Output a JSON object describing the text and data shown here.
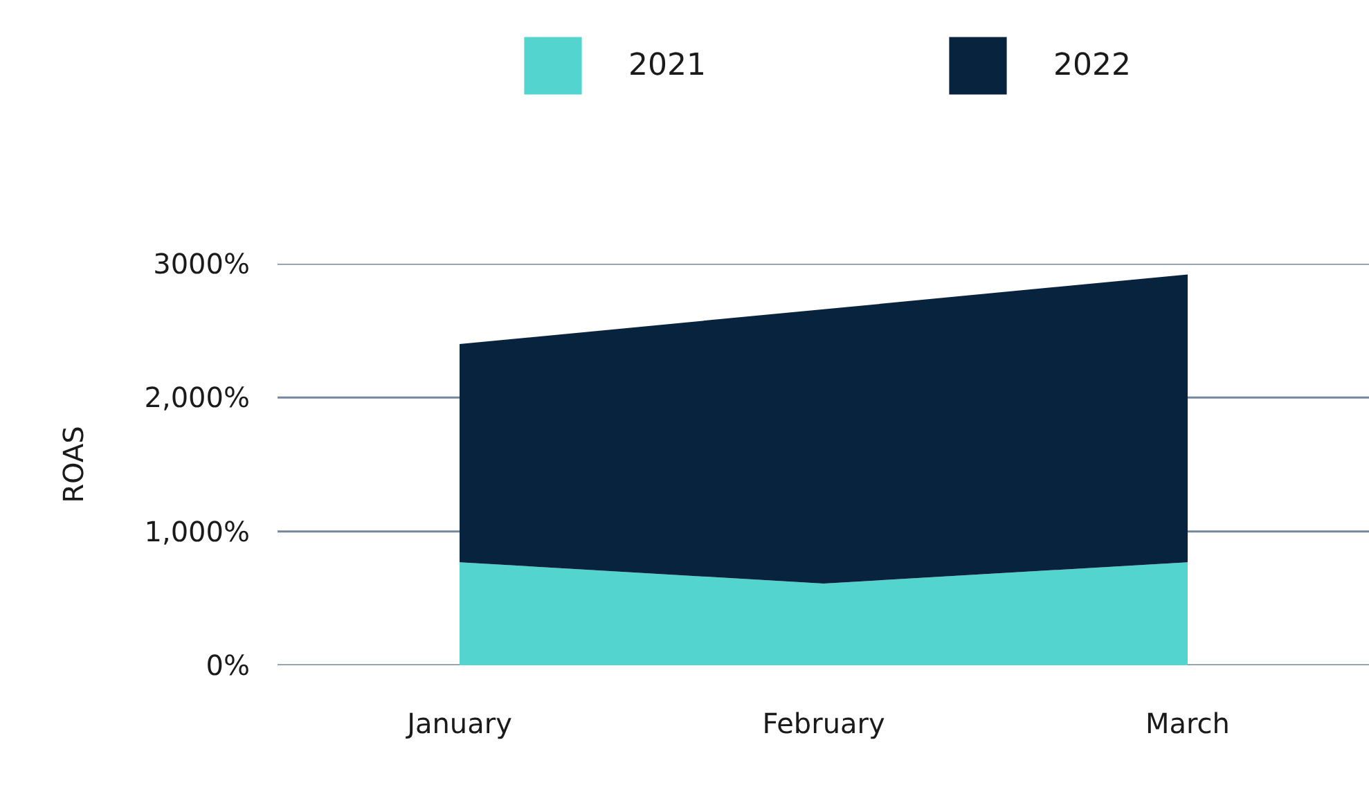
{
  "chart_data": {
    "type": "area",
    "stacked": true,
    "ylabel": "ROAS",
    "categories": [
      "January",
      "February",
      "March"
    ],
    "series": [
      {
        "name": "2021",
        "color": "#53d4cf",
        "values": [
          770,
          610,
          770
        ]
      },
      {
        "name": "2022",
        "color": "#08233d",
        "values": [
          1630,
          2050,
          2150
        ]
      }
    ],
    "ylim": [
      0,
      3000
    ],
    "yticks": [
      {
        "value": 0,
        "label": "0%"
      },
      {
        "value": 1000,
        "label": "1,000%"
      },
      {
        "value": 2000,
        "label": "2,000%"
      },
      {
        "value": 3000,
        "label": "3000%"
      }
    ],
    "grid": "y",
    "legend": "top"
  }
}
